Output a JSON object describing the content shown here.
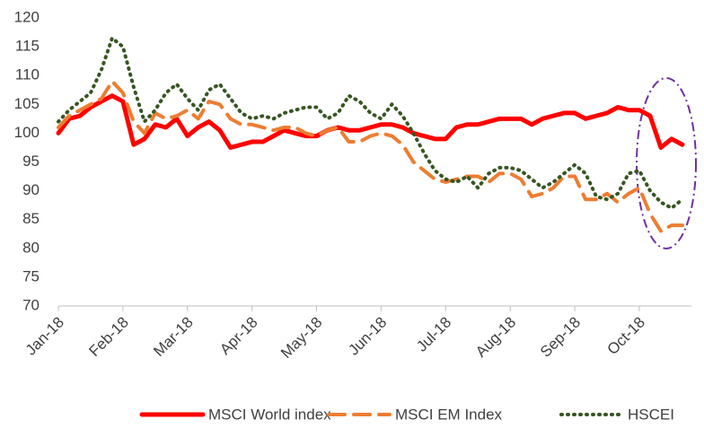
{
  "chart_data": {
    "type": "line",
    "categories": [
      "Jan-18",
      null,
      null,
      null,
      null,
      null,
      "Feb-18",
      null,
      null,
      null,
      null,
      null,
      "Mar-18",
      null,
      null,
      null,
      null,
      null,
      "Apr-18",
      null,
      null,
      null,
      null,
      null,
      "May-18",
      null,
      null,
      null,
      null,
      null,
      "Jun-18",
      null,
      null,
      null,
      null,
      null,
      "Jul-18",
      null,
      null,
      null,
      null,
      null,
      "Aug-18",
      null,
      null,
      null,
      null,
      null,
      "Sep-18",
      null,
      null,
      null,
      null,
      null,
      "Oct-18",
      null,
      null,
      null,
      null
    ],
    "ylim": [
      70,
      120
    ],
    "yticks": [
      70,
      75,
      80,
      85,
      90,
      95,
      100,
      105,
      110,
      115,
      120
    ],
    "grid": false,
    "legend": "bottom",
    "series": [
      {
        "name": "MSCI World index",
        "color": "#ff0000",
        "style": "solid",
        "values": [
          100,
          102.5,
          103,
          104.5,
          105.5,
          106.5,
          105.5,
          98,
          99,
          101.5,
          101,
          102.5,
          99.5,
          101,
          102,
          100.5,
          97.5,
          98,
          98.5,
          98.5,
          99.5,
          100.5,
          100,
          99.5,
          99.5,
          100.5,
          101,
          100.5,
          100.5,
          101,
          101.5,
          101.5,
          101,
          100,
          99.5,
          99,
          99,
          101,
          101.5,
          101.5,
          102,
          102.5,
          102.5,
          102.5,
          101.5,
          102.5,
          103,
          103.5,
          103.5,
          102.5,
          103,
          103.5,
          104.5,
          104,
          104,
          103,
          97.5,
          99,
          98
        ]
      },
      {
        "name": "MSCI EM Index",
        "color": "#ed7d31",
        "style": "dashed",
        "values": [
          101,
          103,
          104,
          105,
          106,
          109,
          107,
          102,
          100,
          103.5,
          102.5,
          103,
          104,
          102.5,
          105.5,
          105,
          102.5,
          101.5,
          101.5,
          101,
          100.5,
          101,
          101,
          100,
          99.5,
          100.5,
          101,
          98.5,
          98.5,
          99.5,
          100,
          99.5,
          98,
          95,
          93.5,
          92,
          91.5,
          92,
          92.5,
          92.5,
          91.5,
          93,
          93,
          92,
          89,
          89.5,
          90.5,
          92.5,
          92.5,
          88.5,
          88.5,
          89.5,
          88,
          89.5,
          90.5,
          86,
          83,
          84,
          84
        ]
      },
      {
        "name": "HSCEI",
        "color": "#375623",
        "style": "dotted",
        "values": [
          102,
          104,
          105.5,
          107,
          111,
          116.5,
          115,
          108,
          102,
          104,
          107,
          108.5,
          106,
          104,
          107.5,
          108.5,
          106,
          103.5,
          102.5,
          103,
          102.5,
          103.5,
          104,
          104.5,
          104.5,
          102.5,
          103.5,
          106.5,
          105.5,
          103.5,
          102.5,
          105,
          103,
          100,
          96.5,
          93.5,
          92,
          91.5,
          92.5,
          90.5,
          93,
          94,
          94,
          93.5,
          92,
          90.5,
          91.5,
          93,
          94.5,
          93,
          89,
          88.5,
          89.5,
          93,
          93.5,
          90,
          88,
          87,
          88.5
        ]
      }
    ]
  }
}
